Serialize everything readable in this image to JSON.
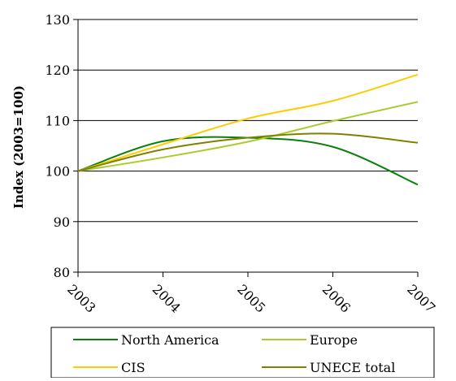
{
  "chart_data": {
    "type": "line",
    "ylabel": "Index (2003=100)",
    "x": [
      2003,
      2004,
      2005,
      2006,
      2007
    ],
    "x_tick_labels": [
      "2003",
      "2004",
      "2005",
      "2006",
      "2007"
    ],
    "ylim": [
      80,
      130
    ],
    "y_ticks": [
      80,
      90,
      100,
      110,
      120,
      130
    ],
    "y_tick_labels": [
      "80",
      "90",
      "100",
      "110",
      "120",
      "130"
    ],
    "grid": "horizontal",
    "legend_position": "bottom",
    "series": [
      {
        "name": "North America",
        "color": "#0a7f0a",
        "values": [
          100,
          105.9,
          106.6,
          104.8,
          97.3
        ]
      },
      {
        "name": "Europe",
        "color": "#a8cc2e",
        "values": [
          100,
          102.7,
          105.8,
          109.9,
          113.7
        ]
      },
      {
        "name": "CIS",
        "color": "#ffcc00",
        "values": [
          100,
          105.3,
          110.4,
          113.9,
          119.1
        ]
      },
      {
        "name": "UNECE total",
        "color": "#808000",
        "values": [
          100,
          104.3,
          106.6,
          107.4,
          105.6
        ]
      }
    ]
  }
}
